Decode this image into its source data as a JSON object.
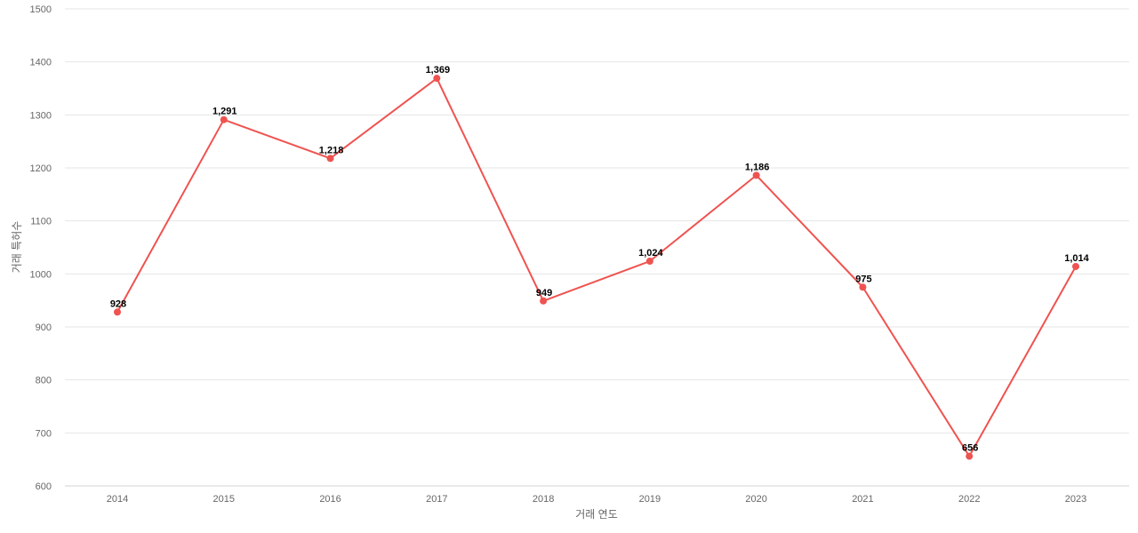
{
  "chart_data": {
    "type": "line",
    "title": "",
    "xlabel": "거래 연도",
    "ylabel": "거래 특허수",
    "categories": [
      "2014",
      "2015",
      "2016",
      "2017",
      "2018",
      "2019",
      "2020",
      "2021",
      "2022",
      "2023"
    ],
    "series": [
      {
        "values": [
          928,
          1291,
          1218,
          1369,
          949,
          1024,
          1186,
          975,
          656,
          1014
        ],
        "labels": [
          "928",
          "1,291",
          "1,218",
          "1,369",
          "949",
          "1,024",
          "1,186",
          "975",
          "656",
          "1,014"
        ]
      }
    ],
    "ylim": [
      600,
      1500
    ],
    "yticks": [
      "600",
      "700",
      "800",
      "900",
      "1000",
      "1100",
      "1200",
      "1300",
      "1400",
      "1500"
    ],
    "grid": true,
    "legend": "none",
    "colors": {
      "series": "#ef5350",
      "grid": "#e6e6e6",
      "axis_text": "#666666"
    }
  }
}
